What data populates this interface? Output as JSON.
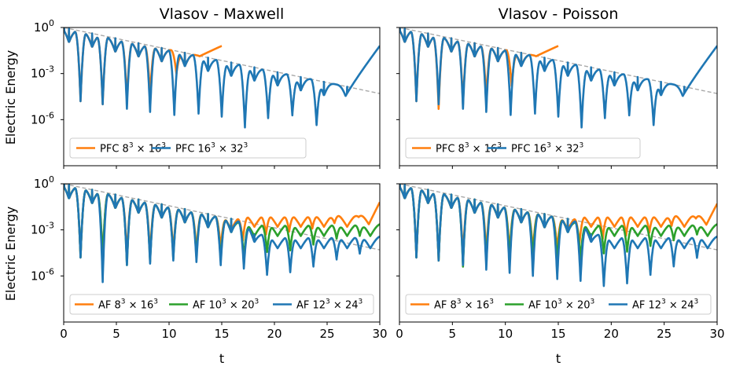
{
  "colors": {
    "orange": "#ff7f0e",
    "blue": "#1f77b4",
    "green": "#2ca02c",
    "ref": "#a9a9a9"
  },
  "tick_labels": {
    "x": [
      "0",
      "5",
      "10",
      "15",
      "20",
      "25",
      "30"
    ],
    "y": [
      {
        "base": "10",
        "exp": "0"
      },
      {
        "base": "10",
        "exp": "-3"
      },
      {
        "base": "10",
        "exp": "-6"
      }
    ]
  },
  "chart_data": [
    {
      "type": "line",
      "panel": "top-left",
      "title": "Vlasov - Maxwell",
      "xlabel": "",
      "ylabel": "Electric Energy",
      "xlim": [
        0,
        30
      ],
      "ylim_log10": [
        -9,
        0
      ],
      "yscale": "log",
      "legend_position": "lower-left",
      "reference_line": {
        "x": [
          0,
          30
        ],
        "log10_y": [
          0,
          -4.3
        ],
        "style": "dashed"
      },
      "series": [
        {
          "name": "PFC 8³ × 16³",
          "label_main": "PFC 8",
          "label_exp1": "3",
          "label_mid": " × 16",
          "label_exp2": "3",
          "color": "orange",
          "tmax": 15,
          "dip_times": [
            1.6,
            3.7,
            6.0,
            8.2,
            10.7
          ],
          "dip_depths": [
            -4.8,
            -5.0,
            -4.8,
            -4.4,
            -3.0
          ],
          "late_growth": {
            "start": 11,
            "end": 15,
            "log10_end": -1.2
          }
        },
        {
          "name": "PFC 16³ × 32³",
          "label_main": "PFC 16",
          "label_exp1": "3",
          "label_mid": " × 32",
          "label_exp2": "3",
          "color": "blue",
          "tmax": 30,
          "dip_times": [
            1.6,
            3.7,
            6.0,
            8.2,
            10.5,
            12.8,
            15.0,
            17.2,
            19.4,
            21.7,
            24.0
          ],
          "dip_depths": [
            -4.8,
            -5.0,
            -5.3,
            -5.5,
            -5.7,
            -5.6,
            -5.8,
            -6.5,
            -5.9,
            -5.7,
            -6.3
          ],
          "late_growth": {
            "start": 26.5,
            "end": 30,
            "log10_end": -1.2
          }
        }
      ]
    },
    {
      "type": "line",
      "panel": "top-right",
      "title": "Vlasov - Poisson",
      "xlabel": "",
      "ylabel": "",
      "xlim": [
        0,
        30
      ],
      "ylim_log10": [
        -9,
        0
      ],
      "yscale": "log",
      "legend_position": "lower-left",
      "reference_line": {
        "x": [
          0,
          30
        ],
        "log10_y": [
          0,
          -4.3
        ],
        "style": "dashed"
      },
      "series": [
        {
          "name": "PFC 8³ × 16³",
          "label_main": "PFC 8",
          "label_exp1": "3",
          "label_mid": " × 16",
          "label_exp2": "3",
          "color": "orange",
          "tmax": 15,
          "dip_times": [
            1.6,
            3.7,
            6.0,
            8.2,
            10.6
          ],
          "dip_depths": [
            -4.8,
            -5.3,
            -5.0,
            -4.6,
            -3.8
          ],
          "late_growth": {
            "start": 11,
            "end": 15,
            "log10_end": -1.2
          }
        },
        {
          "name": "PFC 16³ × 32³",
          "label_main": "PFC 16",
          "label_exp1": "3",
          "label_mid": " × 32",
          "label_exp2": "3",
          "color": "blue",
          "tmax": 30,
          "dip_times": [
            1.6,
            3.7,
            6.0,
            8.2,
            10.5,
            12.8,
            15.0,
            17.2,
            19.4,
            21.7,
            24.0
          ],
          "dip_depths": [
            -4.8,
            -5.0,
            -5.3,
            -5.5,
            -5.7,
            -5.6,
            -5.8,
            -6.5,
            -5.9,
            -5.7,
            -6.3
          ],
          "late_growth": {
            "start": 26.5,
            "end": 30,
            "log10_end": -1.2
          }
        }
      ]
    },
    {
      "type": "line",
      "panel": "bottom-left",
      "title": "",
      "xlabel": "t",
      "ylabel": "Electric Energy",
      "xlim": [
        0,
        30
      ],
      "ylim_log10": [
        -9,
        0
      ],
      "yscale": "log",
      "legend_position": "lower-center",
      "reference_line": {
        "x": [
          0,
          30
        ],
        "log10_y": [
          0,
          -4.3
        ],
        "style": "dashed"
      },
      "series": [
        {
          "name": "AF 8³ × 16³",
          "label_main": "AF 8",
          "label_exp1": "3",
          "label_mid": " × 16",
          "label_exp2": "3",
          "color": "orange",
          "tmax": 30,
          "dip_times": [
            1.6,
            3.7,
            6.0,
            8.2,
            10.4,
            12.6,
            14.9,
            17.0,
            19.2,
            21.4,
            23.6,
            25.7,
            28.0
          ],
          "dip_depths": [
            -4.8,
            -5.0,
            -4.8,
            -4.6,
            -4.5,
            -4.4,
            -4.2,
            -4.2,
            -4.2,
            -4.3,
            -4.4,
            -4.3,
            -4.2
          ],
          "noise_from": 15,
          "noise_level": -2.0,
          "late_growth": {
            "start": 27.5,
            "end": 30,
            "log10_end": -1.2
          }
        },
        {
          "name": "AF 10³ × 20³",
          "label_main": "AF 10",
          "label_exp1": "3",
          "label_mid": " × 20",
          "label_exp2": "3",
          "color": "green",
          "tmax": 30,
          "dip_times": [
            1.6,
            3.7,
            6.0,
            8.2,
            10.4,
            12.6,
            14.9,
            17.1,
            19.3,
            21.5,
            23.7,
            25.9,
            28.1
          ],
          "dip_depths": [
            -4.8,
            -5.0,
            -5.3,
            -5.1,
            -4.9,
            -4.8,
            -5.0,
            -4.9,
            -4.8,
            -5.0,
            -4.9,
            -4.8,
            -4.9
          ],
          "noise_from": 16,
          "noise_level": -2.6
        },
        {
          "name": "AF 12³ × 24³",
          "label_main": "AF 12",
          "label_exp1": "3",
          "label_mid": " × 24",
          "label_exp2": "3",
          "color": "blue",
          "tmax": 30,
          "dip_times": [
            1.6,
            3.7,
            6.0,
            8.2,
            10.4,
            12.6,
            14.9,
            17.1,
            19.3,
            21.5,
            23.7,
            25.9,
            28.1
          ],
          "dip_depths": [
            -4.8,
            -6.4,
            -5.3,
            -5.2,
            -5.0,
            -5.1,
            -5.3,
            -5.5,
            -5.6,
            -5.7,
            -5.6,
            -5.4,
            -5.3
          ],
          "noise_from": 17,
          "noise_level": -3.4
        }
      ]
    },
    {
      "type": "line",
      "panel": "bottom-right",
      "title": "",
      "xlabel": "t",
      "ylabel": "",
      "xlim": [
        0,
        30
      ],
      "ylim_log10": [
        -9,
        0
      ],
      "yscale": "log",
      "legend_position": "lower-center",
      "reference_line": {
        "x": [
          0,
          30
        ],
        "log10_y": [
          0,
          -4.3
        ],
        "style": "dashed"
      },
      "series": [
        {
          "name": "AF 8³ × 16³",
          "label_main": "AF 8",
          "label_exp1": "3",
          "label_mid": " × 16",
          "label_exp2": "3",
          "color": "orange",
          "tmax": 30,
          "dip_times": [
            1.6,
            3.7,
            6.0,
            8.2,
            10.4,
            12.6,
            14.9,
            17.0,
            19.2,
            21.4,
            23.6,
            25.7,
            28.0
          ],
          "dip_depths": [
            -4.8,
            -5.0,
            -4.8,
            -4.6,
            -4.5,
            -4.4,
            -4.3,
            -4.4,
            -4.5,
            -4.6,
            -4.7,
            -4.5,
            -4.3
          ],
          "noise_from": 15,
          "noise_level": -2.0,
          "late_growth": {
            "start": 27.5,
            "end": 30,
            "log10_end": -1.3
          }
        },
        {
          "name": "AF 10³ × 20³",
          "label_main": "AF 10",
          "label_exp1": "3",
          "label_mid": " × 20",
          "label_exp2": "3",
          "color": "green",
          "tmax": 30,
          "dip_times": [
            1.6,
            3.7,
            6.0,
            8.2,
            10.4,
            12.6,
            14.9,
            17.1,
            19.3,
            21.5,
            23.7,
            25.9,
            28.1
          ],
          "dip_depths": [
            -4.8,
            -5.0,
            -5.4,
            -5.2,
            -5.0,
            -4.9,
            -5.1,
            -5.0,
            -4.9,
            -5.1,
            -5.0,
            -4.9,
            -4.8
          ],
          "noise_from": 16,
          "noise_level": -2.6
        },
        {
          "name": "AF 12³ × 24³",
          "label_main": "AF 12",
          "label_exp1": "3",
          "label_mid": " × 24",
          "label_exp2": "3",
          "color": "blue",
          "tmax": 30,
          "dip_times": [
            1.6,
            3.7,
            6.0,
            8.2,
            10.4,
            12.6,
            14.9,
            17.1,
            19.3,
            21.5,
            23.7,
            25.9,
            28.1
          ],
          "dip_depths": [
            -4.8,
            -5.0,
            -5.3,
            -5.6,
            -5.8,
            -6.0,
            -6.2,
            -6.3,
            -6.4,
            -6.5,
            -6.2,
            -5.9,
            -5.6
          ],
          "noise_from": 17,
          "noise_level": -3.4
        }
      ]
    }
  ]
}
